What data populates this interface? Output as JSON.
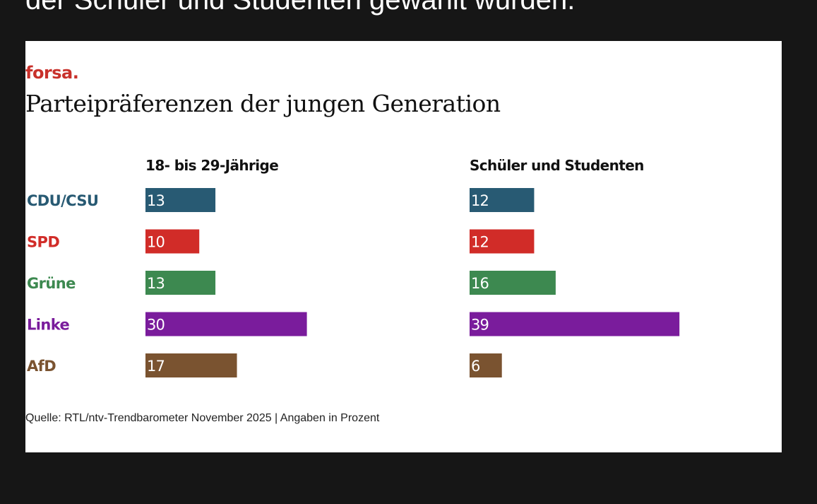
{
  "page": {
    "caption": "der Schüler und Studenten gewählt wurden."
  },
  "chart_data": {
    "type": "bar",
    "orientation": "horizontal",
    "brand": "forsa.",
    "title": "Parteipräferenzen der jungen Generation",
    "source": "Quelle: RTL/ntv-Trendbarometer November 2025 | Angaben in Prozent",
    "categories": [
      "CDU/CSU",
      "SPD",
      "Grüne",
      "Linke",
      "AfD"
    ],
    "category_colors": [
      "#285a73",
      "#d12c28",
      "#3d8950",
      "#7a1c9c",
      "#7a5330"
    ],
    "series": [
      {
        "name": "18- bis 29-Jährige",
        "values": [
          13,
          10,
          13,
          30,
          17
        ]
      },
      {
        "name": "Schüler und Studenten",
        "values": [
          12,
          12,
          16,
          39,
          6
        ]
      }
    ],
    "xlim": [
      0,
      40
    ],
    "unit": "Prozent"
  }
}
